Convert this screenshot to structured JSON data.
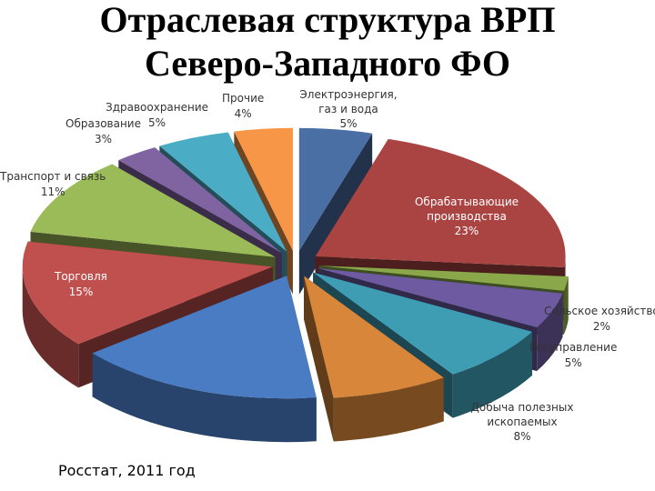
{
  "slide": {
    "title_line_1": "Отраслевая структура ВРП",
    "title_line_2": "Северо-Западного ФО",
    "source": "Росстат, 2011 год"
  },
  "chart_data": {
    "type": "pie",
    "style": "3d-exploded",
    "title": "Отраслевая структура ВРП Северо-Западного ФО",
    "slices": [
      {
        "label": "Электроэнергия, газ и вода",
        "value": 5,
        "display": "5%",
        "color": "#4a6fa5"
      },
      {
        "label": "Обрабатывающие производства",
        "value": 23,
        "display": "23%",
        "color": "#a94442"
      },
      {
        "label": "Сельское хозяйство",
        "value": 2,
        "display": "2%",
        "color": "#8aa84a"
      },
      {
        "label": "Госуправление",
        "value": 5,
        "display": "5%",
        "color": "#6d5aa0"
      },
      {
        "label": "Добыча полезных ископаемых",
        "value": 8,
        "display": "8%",
        "color": "#3e9cb3"
      },
      {
        "label": "",
        "value": 8,
        "display": "",
        "color": "#d8863a"
      },
      {
        "label": "",
        "value": 17,
        "display": "",
        "color": "#4a7cc4"
      },
      {
        "label": "Торговля",
        "value": 15,
        "display": "15%",
        "color": "#c0504d"
      },
      {
        "label": "Транспорт и связь",
        "value": 11,
        "display": "11%",
        "color": "#9bbb59"
      },
      {
        "label": "Образование",
        "value": 3,
        "display": "3%",
        "color": "#8064a2"
      },
      {
        "label": "Здравоохранение",
        "value": 5,
        "display": "5%",
        "color": "#4bacc6"
      },
      {
        "label": "Прочие",
        "value": 4,
        "display": "4%",
        "color": "#f79646"
      }
    ]
  }
}
